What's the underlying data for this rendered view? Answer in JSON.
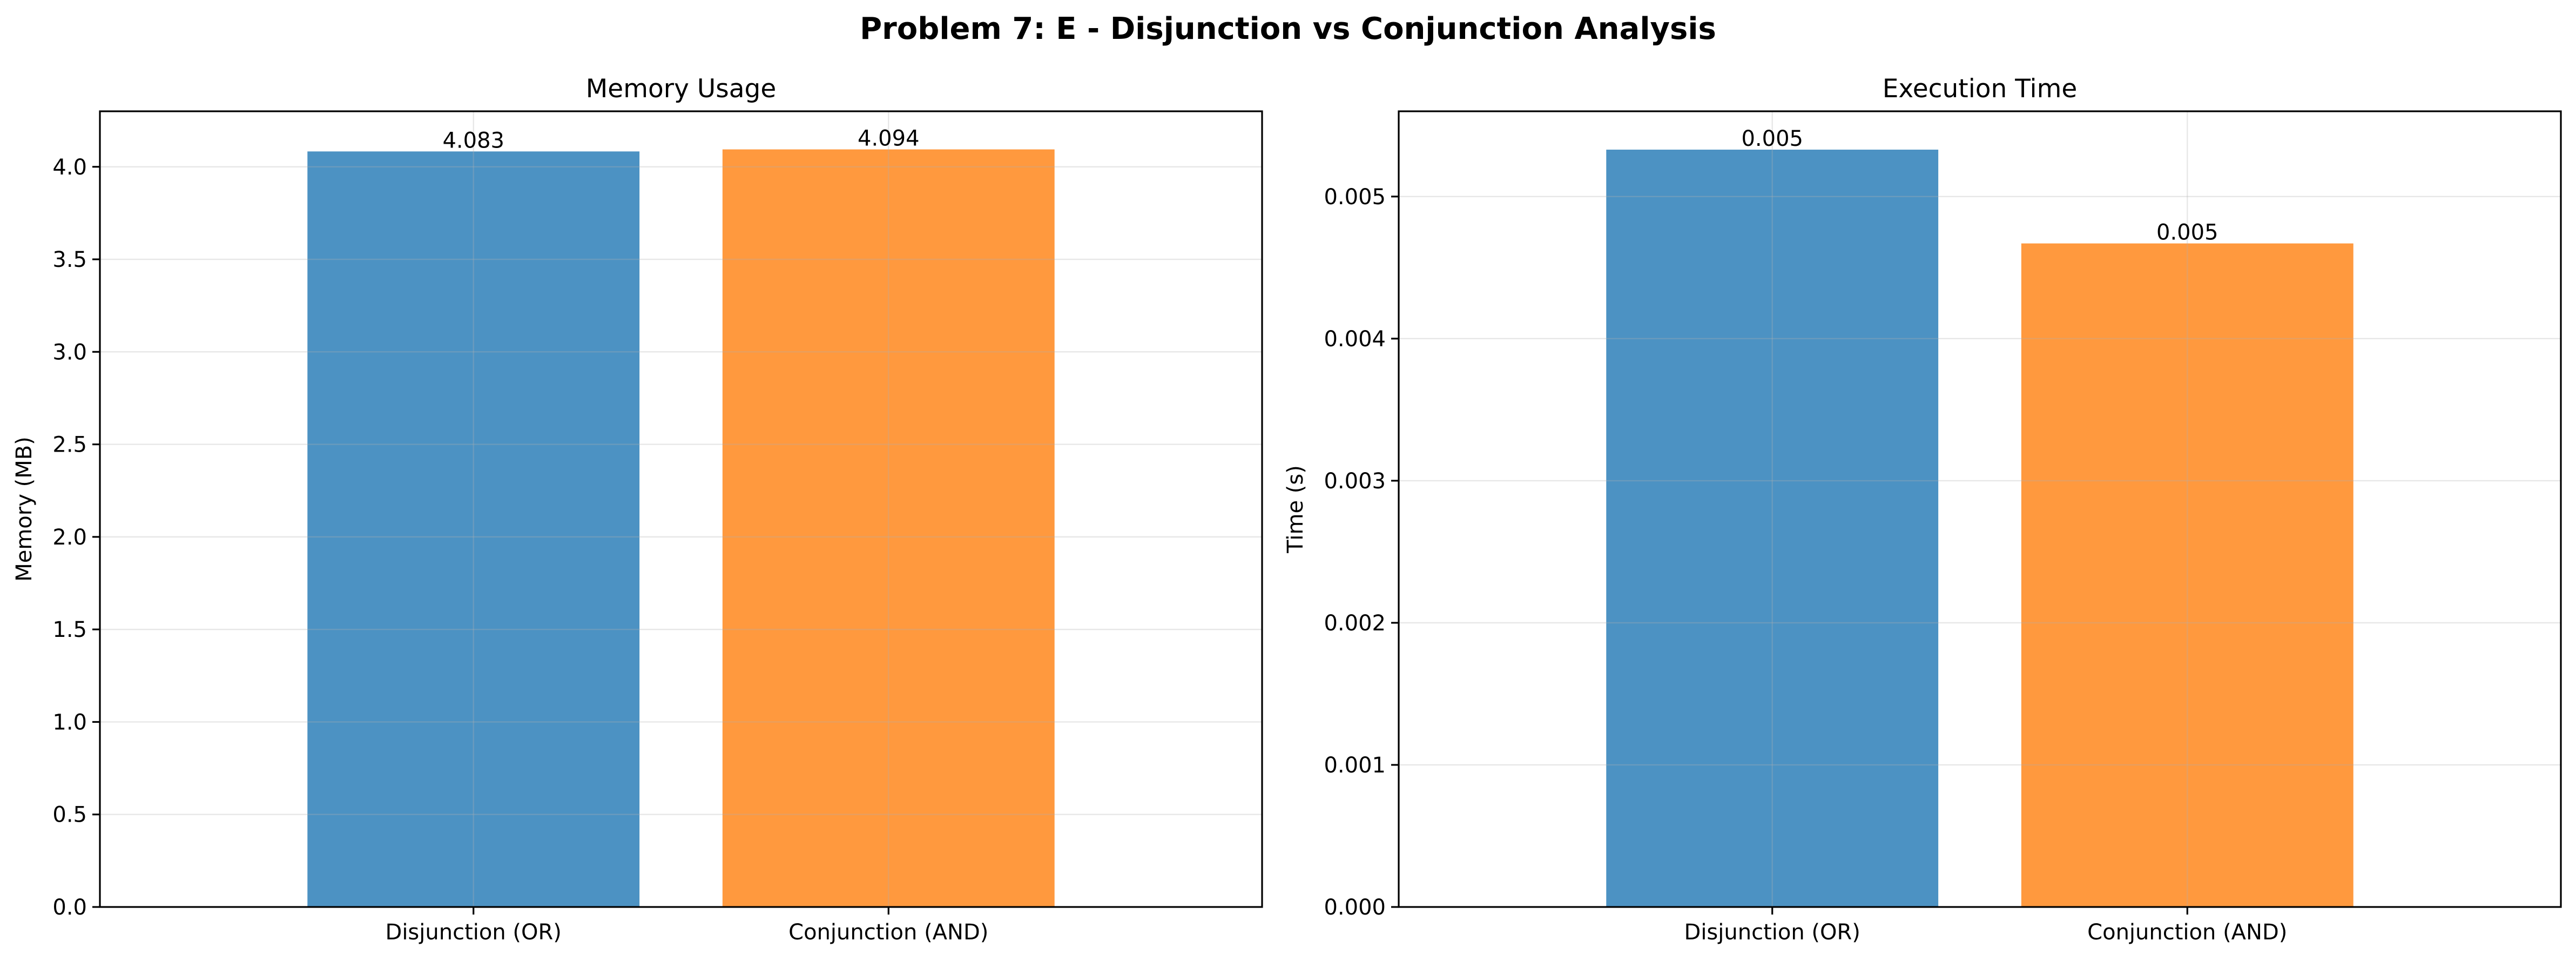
{
  "figure": {
    "title": "Problem 7: E - Disjunction vs Conjunction Analysis"
  },
  "colors": {
    "bar_1": "#1f77b4",
    "bar_2": "#ff7f0e",
    "grid": "#b0b0b0",
    "axis": "#000000"
  },
  "chart_data": [
    {
      "type": "bar",
      "title": "Memory Usage",
      "xlabel": "",
      "ylabel": "Memory (MB)",
      "categories": [
        "Disjunction (OR)",
        "Conjunction (AND)"
      ],
      "values": [
        4.083,
        4.094
      ],
      "data_labels": [
        "4.083",
        "4.094"
      ],
      "ylim": [
        0,
        4.3
      ],
      "yticks": [
        0.0,
        0.5,
        1.0,
        1.5,
        2.0,
        2.5,
        3.0,
        3.5,
        4.0
      ],
      "ytick_labels": [
        "0.0",
        "0.5",
        "1.0",
        "1.5",
        "2.0",
        "2.5",
        "3.0",
        "3.5",
        "4.0"
      ],
      "grid": true,
      "legend": "none"
    },
    {
      "type": "bar",
      "title": "Execution Time",
      "xlabel": "",
      "ylabel": "Time (s)",
      "categories": [
        "Disjunction (OR)",
        "Conjunction (AND)"
      ],
      "values": [
        0.00533,
        0.00467
      ],
      "data_labels": [
        "0.005",
        "0.005"
      ],
      "ylim": [
        0,
        0.0056
      ],
      "yticks": [
        0.0,
        0.001,
        0.002,
        0.003,
        0.004,
        0.005
      ],
      "ytick_labels": [
        "0.000",
        "0.001",
        "0.002",
        "0.003",
        "0.004",
        "0.005"
      ],
      "grid": true,
      "legend": "none"
    }
  ]
}
